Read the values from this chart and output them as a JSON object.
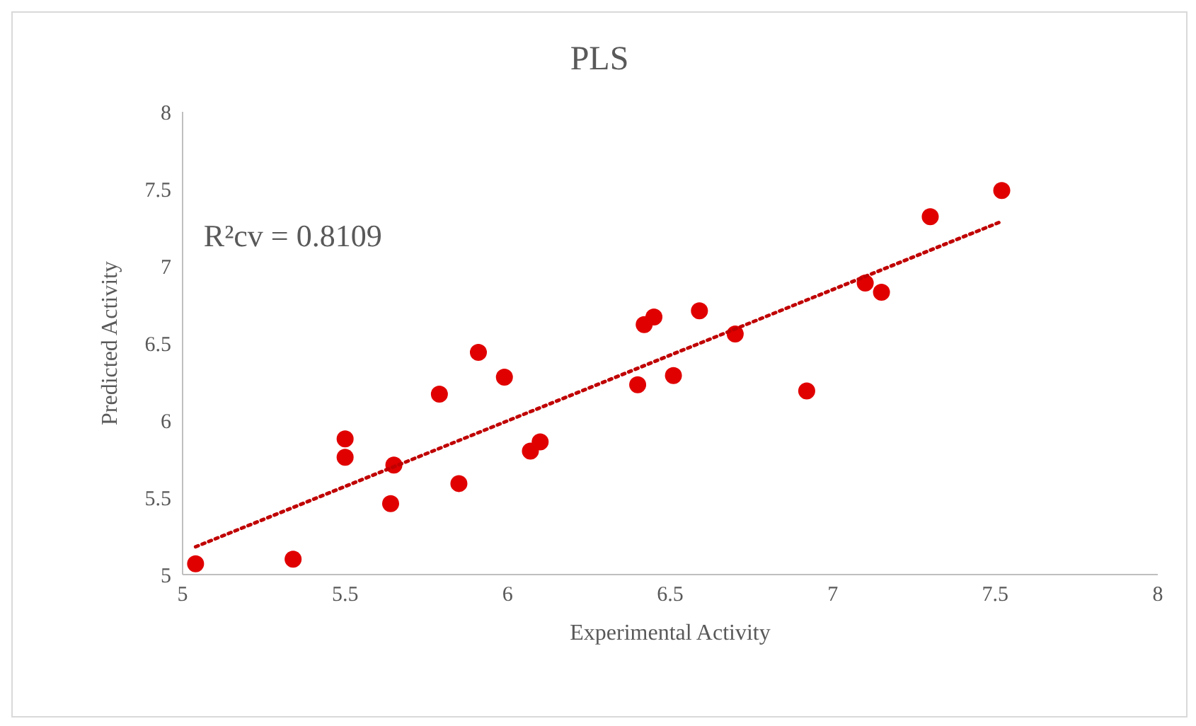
{
  "chart_data": {
    "type": "scatter",
    "title": "PLS",
    "xlabel": "Experimental  Activity",
    "ylabel": "Predicted Activity",
    "xlim": [
      5,
      8
    ],
    "xticks": [
      5,
      5.5,
      6,
      6.5,
      7,
      7.5,
      8
    ],
    "ylim": [
      5,
      8
    ],
    "yticks": [
      5,
      5.5,
      6,
      6.5,
      7,
      7.5,
      8
    ],
    "marker": "circle",
    "annotations": [
      "R²cv = 0.8109"
    ],
    "series": [
      {
        "color": "#e00000",
        "x": [
          5.04,
          5.34,
          5.5,
          5.5,
          5.64,
          5.65,
          5.79,
          5.85,
          5.91,
          5.99,
          6.07,
          6.1,
          6.4,
          6.42,
          6.45,
          6.51,
          6.59,
          6.7,
          6.92,
          7.1,
          7.15,
          7.3,
          7.52
        ],
        "values": [
          5.07,
          5.1,
          5.76,
          5.88,
          5.46,
          5.71,
          6.17,
          5.59,
          6.44,
          6.28,
          5.8,
          5.86,
          6.23,
          6.62,
          6.67,
          6.29,
          6.71,
          6.56,
          6.19,
          6.89,
          6.83,
          7.32,
          7.49
        ]
      },
      {
        "type": "line",
        "color": "#c00000",
        "line_style": "dotted",
        "marker": "none",
        "x": [
          5.04,
          7.52
        ],
        "values": [
          5.18,
          7.29
        ]
      }
    ]
  }
}
